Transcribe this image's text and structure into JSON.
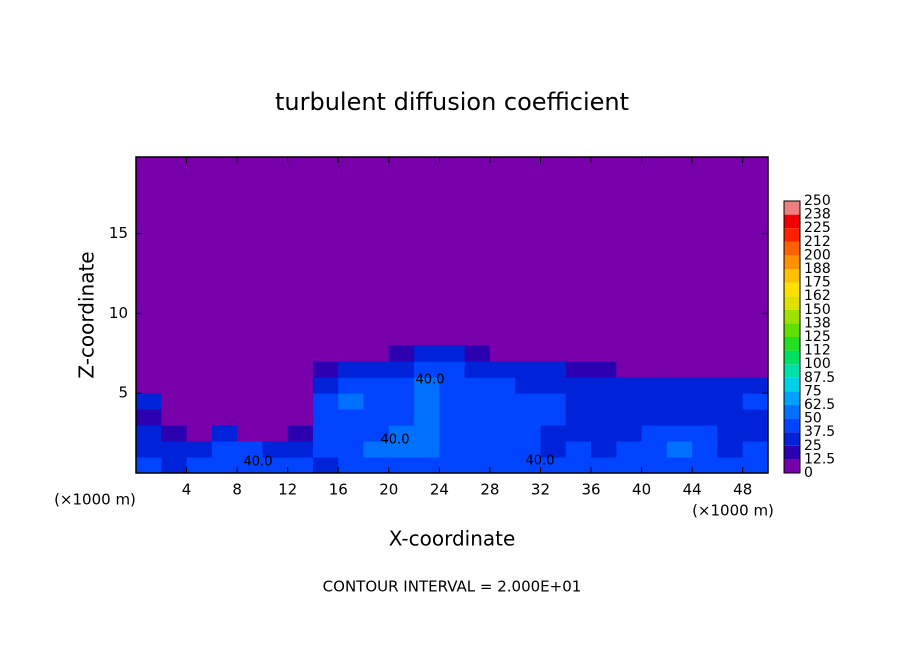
{
  "chart_data": {
    "type": "contour",
    "title": "turbulent diffusion coefficient",
    "xlabel": "X-coordinate",
    "ylabel": "Z-coordinate",
    "x_unit_label": "(×1000 m)",
    "footer": "CONTOUR INTERVAL = 2.000E+01",
    "contour_labels": [
      "40.0",
      "40.0",
      "40.0",
      "40.0"
    ],
    "xlim": [
      0,
      50
    ],
    "ylim": [
      0,
      19.8
    ],
    "xticks": [
      4,
      8,
      12,
      16,
      20,
      24,
      28,
      32,
      36,
      40,
      44,
      48
    ],
    "yticks": [
      5,
      10,
      15
    ],
    "x": [
      1,
      3,
      5,
      7,
      9,
      11,
      13,
      15,
      17,
      19,
      21,
      23,
      25,
      27,
      29,
      31,
      33,
      35,
      37,
      39,
      41,
      43,
      45,
      47,
      49
    ],
    "y": [
      0.5,
      1.5,
      2.5,
      3.5,
      4.5,
      5.5,
      6.5,
      7.5
    ],
    "z": [
      [
        40,
        30,
        40,
        40,
        45,
        40,
        40,
        35,
        40,
        45,
        45,
        45,
        40,
        45,
        40,
        40,
        40,
        40,
        45,
        40,
        40,
        45,
        40,
        40,
        40
      ],
      [
        35,
        30,
        35,
        40,
        40,
        35,
        30,
        40,
        45,
        50,
        50,
        55,
        45,
        40,
        40,
        40,
        35,
        40,
        35,
        40,
        40,
        50,
        40,
        35,
        40
      ],
      [
        30,
        20,
        10,
        30,
        10,
        5,
        20,
        45,
        45,
        45,
        50,
        55,
        45,
        40,
        40,
        40,
        35,
        35,
        30,
        35,
        40,
        45,
        40,
        30,
        35
      ],
      [
        20,
        10,
        5,
        5,
        5,
        5,
        10,
        40,
        45,
        40,
        45,
        50,
        45,
        40,
        40,
        40,
        40,
        30,
        30,
        35,
        30,
        35,
        35,
        30,
        35
      ],
      [
        30,
        10,
        5,
        5,
        5,
        5,
        10,
        40,
        50,
        45,
        45,
        50,
        45,
        45,
        40,
        40,
        40,
        35,
        30,
        30,
        30,
        35,
        35,
        30,
        40
      ],
      [
        5,
        0,
        0,
        0,
        0,
        0,
        5,
        35,
        45,
        40,
        40,
        50,
        45,
        40,
        40,
        35,
        30,
        30,
        30,
        30,
        30,
        30,
        30,
        30,
        30
      ],
      [
        0,
        0,
        0,
        0,
        0,
        0,
        0,
        20,
        30,
        35,
        35,
        40,
        40,
        35,
        30,
        30,
        30,
        20,
        15,
        10,
        5,
        5,
        5,
        5,
        5
      ],
      [
        0,
        0,
        0,
        0,
        0,
        0,
        0,
        0,
        5,
        10,
        15,
        25,
        30,
        15,
        5,
        5,
        0,
        0,
        0,
        0,
        0,
        0,
        0,
        0,
        0
      ]
    ],
    "levels": [
      0,
      12.5,
      25,
      37.5,
      50,
      62.5,
      75,
      87.5,
      100,
      112,
      125,
      138,
      150,
      162,
      175,
      188,
      200,
      212,
      225,
      238,
      250
    ],
    "colors": [
      "#7700aa",
      "#2a00b0",
      "#0022d8",
      "#0044ff",
      "#0070ff",
      "#00a0ff",
      "#00d0e8",
      "#00e0a8",
      "#00e060",
      "#20e020",
      "#60e000",
      "#a0e000",
      "#e0e000",
      "#ffe000",
      "#ffc000",
      "#ff9000",
      "#ff6000",
      "#ff2000",
      "#f00000",
      "#f08080"
    ]
  }
}
